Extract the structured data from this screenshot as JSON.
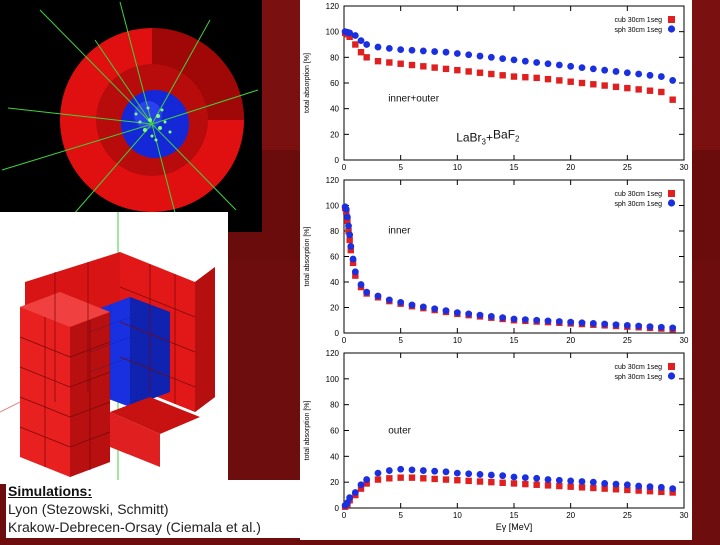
{
  "caption": {
    "heading": "Simulations:",
    "line1": "Lyon (Stezowski, Schmitt)",
    "line2": "Krakow-Debrecen-Orsay (Ciemala et al.)"
  },
  "colors": {
    "red_series": "#e02020",
    "blue_series": "#1a2fe0",
    "background": "#6e0d0d"
  },
  "chart_data": [
    {
      "type": "scatter",
      "panel": "top",
      "ylabel": "total absorption [%]",
      "xlabel": "",
      "xlim": [
        0,
        30
      ],
      "ylim": [
        0,
        120
      ],
      "xticks": [
        0,
        5,
        10,
        15,
        20,
        25,
        30
      ],
      "yticks": [
        0,
        20,
        40,
        60,
        80,
        100,
        120
      ],
      "annotations": [
        "inner+outer"
      ],
      "material": {
        "base1": "LaBr",
        "sub1": "3",
        "plus": "+",
        "base2": "BaF",
        "sub2": "2"
      },
      "legend_position": "top-right",
      "series": [
        {
          "name": "cub 30cm 1seg",
          "color": "red",
          "x": [
            0.1,
            0.3,
            0.5,
            1,
            1.5,
            2,
            3,
            4,
            5,
            6,
            7,
            8,
            9,
            10,
            11,
            12,
            13,
            14,
            15,
            16,
            17,
            18,
            19,
            20,
            21,
            22,
            23,
            24,
            25,
            26,
            27,
            28,
            29
          ],
          "y": [
            99,
            98,
            96,
            90,
            84,
            80,
            77,
            76,
            75,
            74,
            73,
            72,
            71,
            70,
            69,
            68,
            67,
            66,
            65,
            64.5,
            64,
            63,
            62,
            61,
            60,
            59,
            58,
            57,
            56,
            55,
            54,
            53,
            47
          ]
        },
        {
          "name": "sph 30cm 1seg",
          "color": "blue",
          "x": [
            0.1,
            0.3,
            0.5,
            1,
            1.5,
            2,
            3,
            4,
            5,
            6,
            7,
            8,
            9,
            10,
            11,
            12,
            13,
            14,
            15,
            16,
            17,
            18,
            19,
            20,
            21,
            22,
            23,
            24,
            25,
            26,
            27,
            28,
            29
          ],
          "y": [
            100,
            99.5,
            99,
            97,
            93,
            90,
            88,
            87,
            86,
            85.5,
            85,
            84.5,
            84,
            83,
            82,
            81,
            80,
            79,
            78,
            77,
            76,
            75,
            74,
            73,
            72,
            71,
            70,
            69,
            68,
            67,
            66,
            65,
            62
          ]
        }
      ]
    },
    {
      "type": "scatter",
      "panel": "middle",
      "ylabel": "total absorption [%]",
      "xlabel": "",
      "xlim": [
        0,
        30
      ],
      "ylim": [
        0,
        120
      ],
      "xticks": [
        0,
        5,
        10,
        15,
        20,
        25,
        30
      ],
      "yticks": [
        0,
        20,
        40,
        60,
        80,
        100,
        120
      ],
      "annotations": [
        "inner"
      ],
      "legend_position": "top-right",
      "series": [
        {
          "name": "cub 30cm 1seg",
          "color": "red",
          "x": [
            0.1,
            0.2,
            0.3,
            0.4,
            0.5,
            0.6,
            0.8,
            1,
            1.5,
            2,
            3,
            4,
            5,
            6,
            7,
            8,
            9,
            10,
            11,
            12,
            13,
            14,
            15,
            16,
            17,
            18,
            19,
            20,
            21,
            22,
            23,
            24,
            25,
            26,
            27,
            28,
            29
          ],
          "y": [
            98,
            95,
            88,
            80,
            73,
            65,
            55,
            45,
            36,
            31,
            28,
            25,
            23,
            21,
            19.5,
            18,
            16.5,
            15,
            14,
            13,
            12,
            11,
            10,
            9.5,
            9,
            8.5,
            8,
            7.5,
            7,
            6.5,
            6,
            5.5,
            5,
            4.5,
            4,
            3.5,
            3
          ]
        },
        {
          "name": "sph 30cm 1seg",
          "color": "blue",
          "x": [
            0.1,
            0.2,
            0.3,
            0.4,
            0.5,
            0.6,
            0.8,
            1,
            1.5,
            2,
            3,
            4,
            5,
            6,
            7,
            8,
            9,
            10,
            11,
            12,
            13,
            14,
            15,
            16,
            17,
            18,
            19,
            20,
            21,
            22,
            23,
            24,
            25,
            26,
            27,
            28,
            29
          ],
          "y": [
            99,
            97,
            91,
            84,
            77,
            68,
            58,
            48,
            38,
            32,
            29,
            26,
            24,
            22,
            20.5,
            19,
            17.5,
            16,
            15,
            14,
            13,
            12,
            11,
            10.5,
            10,
            9.5,
            9,
            8.5,
            8,
            7.5,
            7,
            6.5,
            6,
            5.5,
            5,
            4.5,
            4
          ]
        }
      ]
    },
    {
      "type": "scatter",
      "panel": "bottom",
      "ylabel": "total absorption [%]",
      "xlabel": "Eγ [MeV]",
      "xlim": [
        0,
        30
      ],
      "ylim": [
        0,
        120
      ],
      "xticks": [
        0,
        5,
        10,
        15,
        20,
        25,
        30
      ],
      "yticks": [
        0,
        20,
        40,
        60,
        80,
        100,
        120
      ],
      "annotations": [
        "outer"
      ],
      "legend_position": "top-right",
      "series": [
        {
          "name": "cub 30cm 1seg",
          "color": "red",
          "x": [
            0.1,
            0.3,
            0.5,
            1,
            1.5,
            2,
            3,
            4,
            5,
            6,
            7,
            8,
            9,
            10,
            11,
            12,
            13,
            14,
            15,
            16,
            17,
            18,
            19,
            20,
            21,
            22,
            23,
            24,
            25,
            26,
            27,
            28,
            29
          ],
          "y": [
            1,
            3,
            6,
            10,
            15,
            19,
            22,
            23,
            23.5,
            23.5,
            23,
            22.5,
            22,
            21.5,
            21,
            20.5,
            20,
            19.5,
            19,
            18.5,
            18,
            17.5,
            17,
            16.5,
            16,
            15.5,
            15,
            14.5,
            14,
            13.5,
            13,
            12.5,
            12
          ]
        },
        {
          "name": "sph 30cm 1seg",
          "color": "blue",
          "x": [
            0.1,
            0.3,
            0.5,
            1,
            1.5,
            2,
            3,
            4,
            5,
            6,
            7,
            8,
            9,
            10,
            11,
            12,
            13,
            14,
            15,
            16,
            17,
            18,
            19,
            20,
            21,
            22,
            23,
            24,
            25,
            26,
            27,
            28,
            29
          ],
          "y": [
            2,
            4,
            8,
            12,
            18,
            22,
            27,
            29,
            30,
            29.5,
            29,
            28.5,
            28,
            27,
            26.5,
            26,
            25.5,
            25,
            24,
            23.5,
            23,
            22,
            21.5,
            21,
            20.5,
            20,
            19,
            18.5,
            18,
            17,
            16.5,
            16,
            15
          ]
        }
      ]
    }
  ]
}
